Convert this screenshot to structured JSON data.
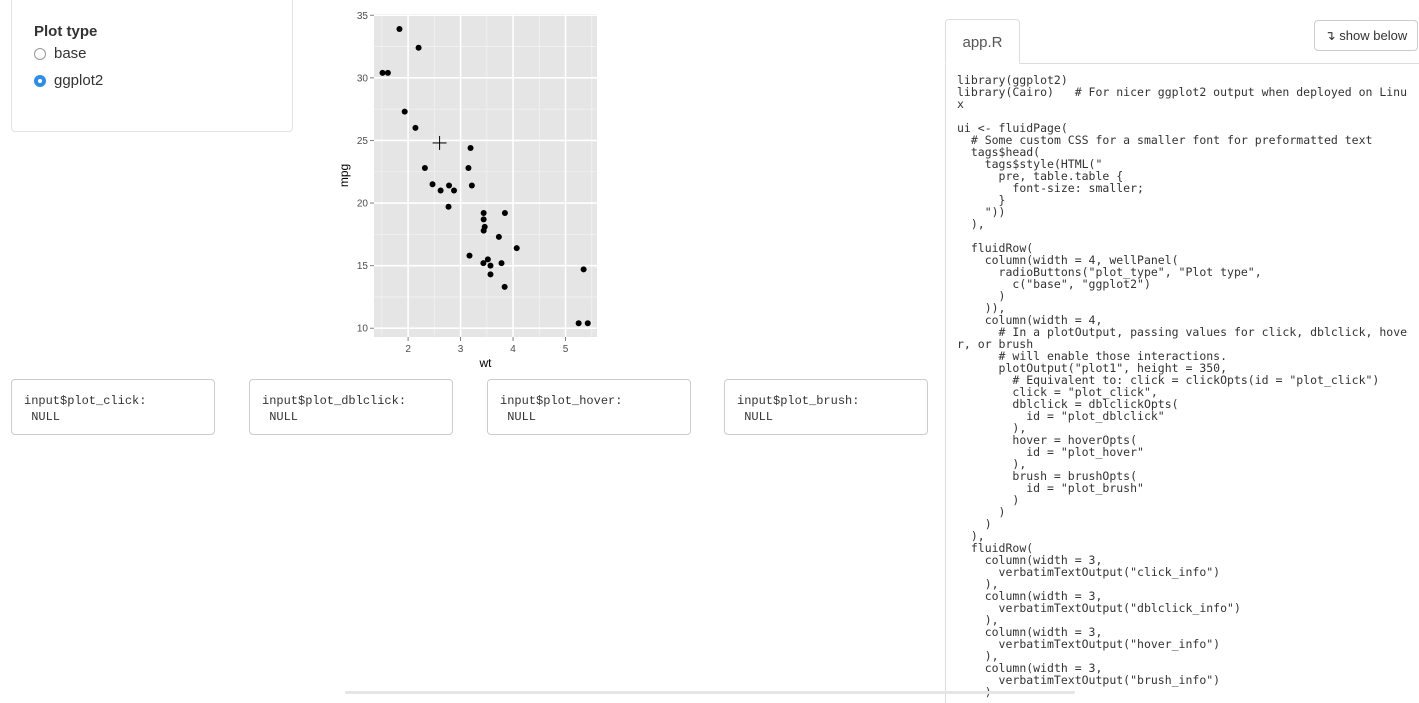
{
  "sidebar": {
    "label": "Plot type",
    "options": [
      {
        "label": "base",
        "checked": false
      },
      {
        "label": "ggplot2",
        "checked": true
      }
    ]
  },
  "chart_data": {
    "type": "scatter",
    "xlabel": "wt",
    "ylabel": "mpg",
    "xlim": [
      1.35,
      5.6
    ],
    "ylim": [
      9.3,
      35.1
    ],
    "xticks": [
      2,
      3,
      4,
      5
    ],
    "yticks": [
      10,
      15,
      20,
      25,
      30,
      35
    ],
    "grid": true,
    "points": [
      [
        2.62,
        21.0
      ],
      [
        2.875,
        21.0
      ],
      [
        2.32,
        22.8
      ],
      [
        3.215,
        21.4
      ],
      [
        3.44,
        18.7
      ],
      [
        3.46,
        18.1
      ],
      [
        3.57,
        14.3
      ],
      [
        3.19,
        24.4
      ],
      [
        3.15,
        22.8
      ],
      [
        3.44,
        19.2
      ],
      [
        3.44,
        17.8
      ],
      [
        4.07,
        16.4
      ],
      [
        3.73,
        17.3
      ],
      [
        3.78,
        15.2
      ],
      [
        5.25,
        10.4
      ],
      [
        5.424,
        10.4
      ],
      [
        5.345,
        14.7
      ],
      [
        2.2,
        32.4
      ],
      [
        1.615,
        30.4
      ],
      [
        1.835,
        33.9
      ],
      [
        2.465,
        21.5
      ],
      [
        3.52,
        15.5
      ],
      [
        3.435,
        15.2
      ],
      [
        3.84,
        13.3
      ],
      [
        3.845,
        19.2
      ],
      [
        1.935,
        27.3
      ],
      [
        2.14,
        26.0
      ],
      [
        1.513,
        30.4
      ],
      [
        3.17,
        15.8
      ],
      [
        2.77,
        19.7
      ],
      [
        3.57,
        15.0
      ],
      [
        2.78,
        21.4
      ]
    ],
    "cursor": [
      2.6,
      24.8
    ]
  },
  "info_boxes": [
    {
      "label": "input$plot_click:",
      "value": " NULL"
    },
    {
      "label": "input$plot_dblclick:",
      "value": " NULL"
    },
    {
      "label": "input$plot_hover:",
      "value": " NULL"
    },
    {
      "label": "input$plot_brush:",
      "value": " NULL"
    }
  ],
  "code_panel": {
    "tab_label": "app.R",
    "show_below_label": "↴ show below",
    "code": "library(ggplot2)\nlibrary(Cairo)   # For nicer ggplot2 output when deployed on Linux\n\nui <- fluidPage(\n  # Some custom CSS for a smaller font for preformatted text\n  tags$head(\n    tags$style(HTML(\"\n      pre, table.table {\n        font-size: smaller;\n      }\n    \"))\n  ),\n\n  fluidRow(\n    column(width = 4, wellPanel(\n      radioButtons(\"plot_type\", \"Plot type\",\n        c(\"base\", \"ggplot2\")\n      )\n    )),\n    column(width = 4,\n      # In a plotOutput, passing values for click, dblclick, hover, or brush\n      # will enable those interactions.\n      plotOutput(\"plot1\", height = 350,\n        # Equivalent to: click = clickOpts(id = \"plot_click\")\n        click = \"plot_click\",\n        dblclick = dblclickOpts(\n          id = \"plot_dblclick\"\n        ),\n        hover = hoverOpts(\n          id = \"plot_hover\"\n        ),\n        brush = brushOpts(\n          id = \"plot_brush\"\n        )\n      )\n    )\n  ),\n  fluidRow(\n    column(width = 3,\n      verbatimTextOutput(\"click_info\")\n    ),\n    column(width = 3,\n      verbatimTextOutput(\"dblclick_info\")\n    ),\n    column(width = 3,\n      verbatimTextOutput(\"hover_info\")\n    ),\n    column(width = 3,\n      verbatimTextOutput(\"brush_info\")\n    )"
  }
}
